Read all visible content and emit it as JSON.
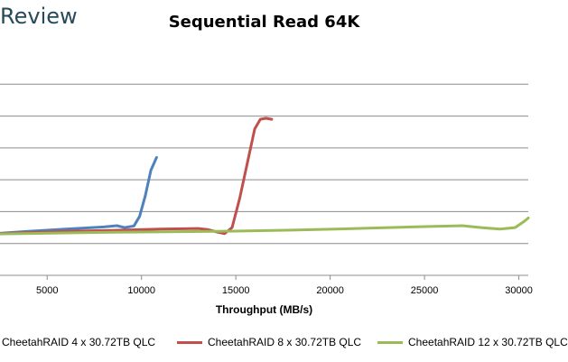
{
  "brand": "Review",
  "chart_data": {
    "type": "line",
    "title": "Sequential Read 64K",
    "xlabel": "Throughput (MB/s)",
    "ylabel": "",
    "xlim": [
      2500,
      30500
    ],
    "ylim": [
      0,
      7
    ],
    "x_ticks": [
      5000,
      10000,
      15000,
      20000,
      25000,
      30000
    ],
    "x_tick_labels": [
      "5000",
      "10000",
      "15000",
      "20000",
      "25000",
      "30000"
    ],
    "y_gridlines": [
      1,
      2,
      3,
      4,
      5,
      6
    ],
    "grid": true,
    "legend_position": "bottom",
    "series": [
      {
        "name": "CheetahRAID 4 x 30.72TB QLC",
        "color": "#4f81bd",
        "points": [
          [
            2500,
            1.32
          ],
          [
            4000,
            1.38
          ],
          [
            6000,
            1.45
          ],
          [
            8000,
            1.52
          ],
          [
            8700,
            1.56
          ],
          [
            9100,
            1.5
          ],
          [
            9600,
            1.55
          ],
          [
            9900,
            1.85
          ],
          [
            10200,
            2.5
          ],
          [
            10500,
            3.3
          ],
          [
            10800,
            3.7
          ]
        ]
      },
      {
        "name": "CheetahRAID 8 x 30.72TB QLC",
        "color": "#c0504d",
        "points": [
          [
            2500,
            1.31
          ],
          [
            6000,
            1.38
          ],
          [
            9000,
            1.42
          ],
          [
            11000,
            1.45
          ],
          [
            13000,
            1.47
          ],
          [
            13500,
            1.44
          ],
          [
            14000,
            1.36
          ],
          [
            14400,
            1.31
          ],
          [
            14800,
            1.5
          ],
          [
            15200,
            2.4
          ],
          [
            15600,
            3.5
          ],
          [
            16000,
            4.6
          ],
          [
            16300,
            4.9
          ],
          [
            16600,
            4.93
          ],
          [
            16900,
            4.9
          ]
        ]
      },
      {
        "name": "CheetahRAID 12 x 30.72TB QLC",
        "color": "#9bbb59",
        "points": [
          [
            2500,
            1.3
          ],
          [
            8000,
            1.35
          ],
          [
            14000,
            1.38
          ],
          [
            18000,
            1.42
          ],
          [
            22000,
            1.48
          ],
          [
            25000,
            1.53
          ],
          [
            27000,
            1.56
          ],
          [
            28000,
            1.5
          ],
          [
            29000,
            1.45
          ],
          [
            29800,
            1.5
          ],
          [
            30300,
            1.7
          ],
          [
            30500,
            1.8
          ]
        ]
      }
    ]
  }
}
